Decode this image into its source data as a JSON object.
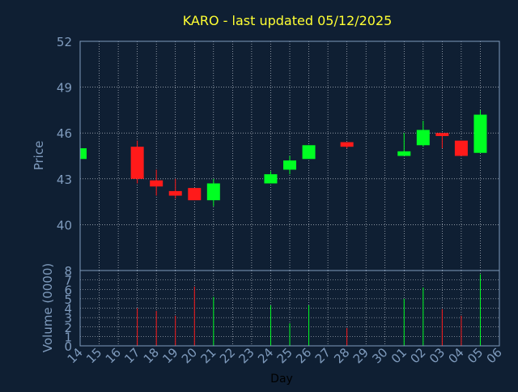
{
  "colors": {
    "background": "#0f1f33",
    "grid": "#d8dde6",
    "axis_text": "#7f9bbd",
    "title": "#ffff33",
    "up": "#00ff22",
    "down": "#ff1a1a"
  },
  "chart_data": [
    {
      "type": "candlestick",
      "title": "KARO - last updated 05/12/2025",
      "ylabel": "Price",
      "ylim": [
        37,
        52
      ],
      "yticks": [
        40,
        43,
        46,
        49,
        52
      ],
      "grid": true,
      "x_ticks": [
        "14",
        "15",
        "16",
        "17",
        "18",
        "19",
        "20",
        "21",
        "22",
        "23",
        "24",
        "25",
        "26",
        "27",
        "28",
        "29",
        "30",
        "01",
        "02",
        "03",
        "04",
        "05",
        "06"
      ],
      "candles": [
        {
          "x": "14",
          "open": 44.3,
          "close": 45.0,
          "high": 45.0,
          "low": 44.3
        },
        {
          "x": "17",
          "open": 45.1,
          "close": 43.0,
          "high": 45.5,
          "low": 42.7
        },
        {
          "x": "18",
          "open": 42.9,
          "close": 42.5,
          "high": 43.6,
          "low": 41.9
        },
        {
          "x": "19",
          "open": 42.2,
          "close": 41.9,
          "high": 43.0,
          "low": 41.7
        },
        {
          "x": "20",
          "open": 42.4,
          "close": 41.6,
          "high": 42.4,
          "low": 41.6
        },
        {
          "x": "21",
          "open": 41.6,
          "close": 42.7,
          "high": 43.0,
          "low": 41.2
        },
        {
          "x": "24",
          "open": 42.7,
          "close": 43.3,
          "high": 43.5,
          "low": 42.7
        },
        {
          "x": "25",
          "open": 43.6,
          "close": 44.2,
          "high": 44.5,
          "low": 43.3
        },
        {
          "x": "26",
          "open": 44.3,
          "close": 45.2,
          "high": 45.2,
          "low": 44.3
        },
        {
          "x": "28",
          "open": 45.4,
          "close": 45.1,
          "high": 45.4,
          "low": 45.0
        },
        {
          "x": "01",
          "open": 44.5,
          "close": 44.8,
          "high": 46.0,
          "low": 44.5
        },
        {
          "x": "02",
          "open": 45.2,
          "close": 46.2,
          "high": 46.8,
          "low": 45.1
        },
        {
          "x": "03",
          "open": 46.0,
          "close": 45.8,
          "high": 46.0,
          "low": 45.0
        },
        {
          "x": "04",
          "open": 45.5,
          "close": 44.5,
          "high": 45.5,
          "low": 44.5
        },
        {
          "x": "05",
          "open": 44.7,
          "close": 47.2,
          "high": 47.5,
          "low": 44.7
        }
      ]
    },
    {
      "type": "bar",
      "ylabel": "Volume (0000)",
      "xlabel": "Day",
      "ylim": [
        0,
        8
      ],
      "yticks": [
        0,
        1,
        2,
        3,
        4,
        5,
        6,
        7,
        8
      ],
      "grid": true,
      "bars": [
        {
          "x": "14",
          "value": 0.3,
          "direction": "up"
        },
        {
          "x": "17",
          "value": 4.0,
          "direction": "down"
        },
        {
          "x": "18",
          "value": 3.7,
          "direction": "down"
        },
        {
          "x": "19",
          "value": 3.2,
          "direction": "down"
        },
        {
          "x": "20",
          "value": 6.3,
          "direction": "down"
        },
        {
          "x": "21",
          "value": 5.2,
          "direction": "up"
        },
        {
          "x": "24",
          "value": 4.3,
          "direction": "up"
        },
        {
          "x": "25",
          "value": 2.4,
          "direction": "up"
        },
        {
          "x": "26",
          "value": 4.3,
          "direction": "up"
        },
        {
          "x": "28",
          "value": 1.9,
          "direction": "down"
        },
        {
          "x": "01",
          "value": 5.0,
          "direction": "up"
        },
        {
          "x": "02",
          "value": 6.2,
          "direction": "up"
        },
        {
          "x": "03",
          "value": 3.9,
          "direction": "down"
        },
        {
          "x": "04",
          "value": 3.2,
          "direction": "down"
        },
        {
          "x": "05",
          "value": 7.6,
          "direction": "up"
        }
      ]
    }
  ]
}
